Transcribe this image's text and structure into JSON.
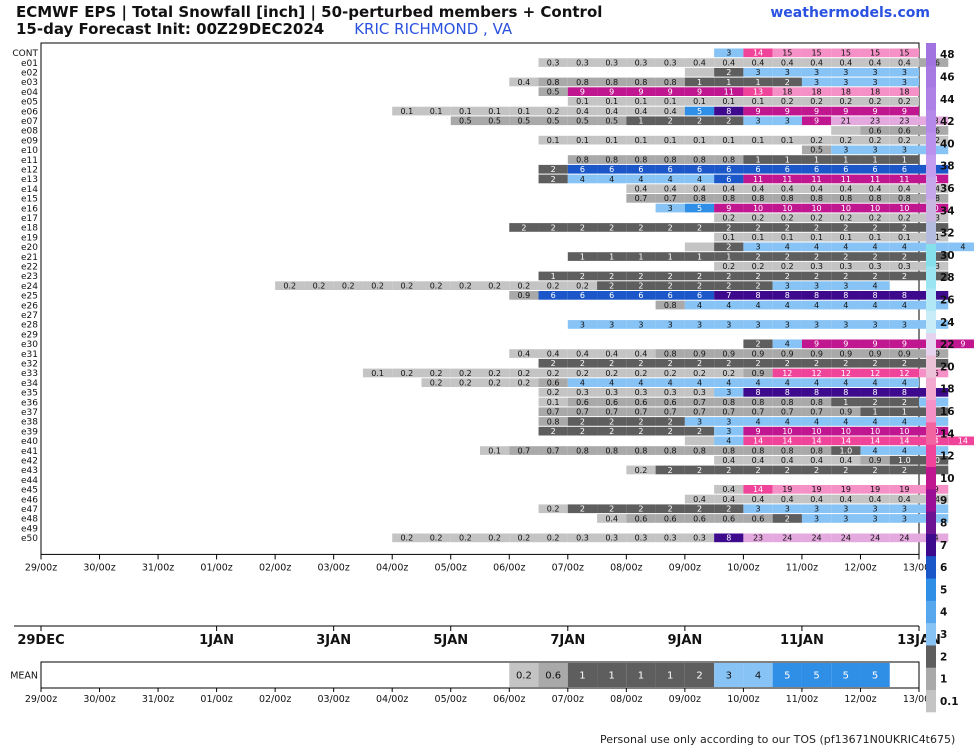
{
  "header": {
    "title_line1": "ECMWF EPS | Total Snowfall [inch] | 50-perturbed members + Control",
    "title_line2": "15-day Forecast Init: 00Z29DEC2024",
    "location": "KRIC RICHMOND      , VA",
    "brand": "weathermodels.com"
  },
  "footer": "Personal use only according to our TOS (pf13671N0UKRIC4t675)",
  "colors": {
    "grey_light": "#c4c4c4",
    "grey_mid": "#a9a9a9",
    "grey_dark": "#5e5e5e",
    "blue_light": "#87c3f5",
    "blue_mid": "#2f8ee6",
    "blue_dark": "#1b57c9",
    "purple": "#3d0a8e",
    "magenta": "#c0168f",
    "pink": "#f0449a",
    "pink_light": "#f591c6",
    "lavender": "#e4a9de"
  },
  "chart_data": {
    "type": "heatmap",
    "title": "ECMWF EPS | Total Snowfall [inch] | 50-perturbed members + Control",
    "time_ticks": [
      "29/00z",
      "30/00z",
      "31/00z",
      "01/00z",
      "02/00z",
      "03/00z",
      "04/00z",
      "05/00z",
      "06/00z",
      "07/00z",
      "08/00z",
      "09/00z",
      "10/00z",
      "11/00z",
      "12/00z",
      "13/00z"
    ],
    "date_labels": [
      {
        "label": "29DEC",
        "day": 0
      },
      {
        "label": "1JAN",
        "day": 3
      },
      {
        "label": "3JAN",
        "day": 5
      },
      {
        "label": "5JAN",
        "day": 7
      },
      {
        "label": "7JAN",
        "day": 9
      },
      {
        "label": "9JAN",
        "day": 11
      },
      {
        "label": "11JAN",
        "day": 13
      },
      {
        "label": "13JAN",
        "day": 15
      }
    ],
    "step_days": 0.5,
    "members": [
      {
        "name": "CONT",
        "start": 23,
        "values": [
          "3",
          "14",
          "15",
          "15",
          "15",
          "15",
          "15"
        ]
      },
      {
        "name": "e01",
        "start": 17,
        "values": [
          "0.3",
          "0.3",
          "0.3",
          "0.3",
          "0.3",
          "0.4",
          "0.4",
          "0.4",
          "0.4",
          "0.4",
          "0.4",
          "0.4",
          "0.4",
          "0.6"
        ]
      },
      {
        "name": "e02",
        "start": 22,
        "values": [
          "",
          "2",
          "3",
          "3",
          "3",
          "3",
          "3",
          "3"
        ]
      },
      {
        "name": "e03",
        "start": 16,
        "values": [
          "0.4",
          "0.8",
          "0.8",
          "0.8",
          "0.8",
          "0.8",
          "1",
          "1",
          "1",
          "2",
          "3",
          "3",
          "3",
          "3"
        ]
      },
      {
        "name": "e04",
        "start": 17,
        "values": [
          "0.5",
          "9",
          "9",
          "9",
          "9",
          "9",
          "11",
          "13",
          "18",
          "18",
          "18",
          "18",
          "18"
        ]
      },
      {
        "name": "e05",
        "start": 18,
        "values": [
          "0.1",
          "0.1",
          "0.1",
          "0.1",
          "0.1",
          "0.1",
          "0.1",
          "0.2",
          "0.2",
          "0.2",
          "0.2",
          "0.2"
        ]
      },
      {
        "name": "e06",
        "start": 12,
        "values": [
          "0.1",
          "0.1",
          "0.1",
          "0.1",
          "0.1",
          "0.2",
          "0.4",
          "0.4",
          "0.4",
          "0.4",
          "5",
          "8",
          "9",
          "9",
          "9",
          "9",
          "9",
          "9"
        ]
      },
      {
        "name": "e07",
        "start": 14,
        "values": [
          "0.5",
          "0.5",
          "0.5",
          "0.5",
          "0.5",
          "0.5",
          "1",
          "2",
          "2",
          "2",
          "3",
          "3",
          "9",
          "21",
          "23",
          "23",
          "23"
        ]
      },
      {
        "name": "e08",
        "start": 27,
        "values": [
          "",
          "0.6",
          "0.6",
          "0.6"
        ]
      },
      {
        "name": "e09",
        "start": 17,
        "values": [
          "0.1",
          "0.1",
          "0.1",
          "0.1",
          "0.1",
          "0.1",
          "0.1",
          "0.1",
          "0.1",
          "0.2",
          "0.2",
          "0.2",
          "0.2",
          "0.2"
        ]
      },
      {
        "name": "e10",
        "start": 26,
        "values": [
          "0.5",
          "3",
          "3",
          "3",
          "3"
        ]
      },
      {
        "name": "e11",
        "start": 18,
        "values": [
          "0.8",
          "0.8",
          "0.8",
          "0.8",
          "0.8",
          "0.8",
          "1",
          "1",
          "1",
          "1",
          "1",
          "1"
        ]
      },
      {
        "name": "e12",
        "start": 17,
        "values": [
          "2",
          "6",
          "6",
          "6",
          "6",
          "6",
          "6",
          "6",
          "6",
          "6",
          "6",
          "6",
          "6",
          "6"
        ]
      },
      {
        "name": "e13",
        "start": 17,
        "values": [
          "2",
          "4",
          "4",
          "4",
          "4",
          "4",
          "6",
          "11",
          "11",
          "11",
          "11",
          "11",
          "11",
          "11"
        ]
      },
      {
        "name": "e14",
        "start": 20,
        "values": [
          "0.4",
          "0.4",
          "0.4",
          "0.4",
          "0.4",
          "0.4",
          "0.4",
          "0.4",
          "0.4",
          "0.4",
          "0.4"
        ]
      },
      {
        "name": "e15",
        "start": 20,
        "values": [
          "0.7",
          "0.7",
          "0.8",
          "0.8",
          "0.8",
          "0.8",
          "0.8",
          "0.8",
          "0.8",
          "0.8",
          "0.8"
        ]
      },
      {
        "name": "e16",
        "start": 21,
        "values": [
          "3",
          "5",
          "9",
          "10",
          "10",
          "10",
          "10",
          "10",
          "10",
          "10"
        ]
      },
      {
        "name": "e17",
        "start": 23,
        "values": [
          "0.2",
          "0.2",
          "0.2",
          "0.2",
          "0.2",
          "0.2",
          "0.2",
          "0.3"
        ]
      },
      {
        "name": "e18",
        "start": 16,
        "values": [
          "2",
          "2",
          "2",
          "2",
          "2",
          "2",
          "2",
          "2",
          "2",
          "2",
          "2",
          "2",
          "2",
          "2",
          "2"
        ]
      },
      {
        "name": "e19",
        "start": 23,
        "values": [
          "0.1",
          "0.1",
          "0.1",
          "0.1",
          "0.1",
          "0.1",
          "0.1",
          "0.1"
        ]
      },
      {
        "name": "e20",
        "start": 22,
        "values": [
          "",
          "2",
          "3",
          "4",
          "4",
          "4",
          "4",
          "4",
          "4",
          "4"
        ]
      },
      {
        "name": "e21",
        "start": 18,
        "values": [
          "1",
          "1",
          "1",
          "1",
          "1",
          "1",
          "2",
          "2",
          "2",
          "2",
          "2",
          "2",
          "2"
        ]
      },
      {
        "name": "e22",
        "start": 23,
        "values": [
          "0.2",
          "0.2",
          "0.2",
          "0.3",
          "0.3",
          "0.3",
          "0.3",
          "0.3"
        ]
      },
      {
        "name": "e23",
        "start": 17,
        "values": [
          "1",
          "2",
          "2",
          "2",
          "2",
          "2",
          "2",
          "2",
          "2",
          "2",
          "2",
          "2",
          "2",
          "2"
        ]
      },
      {
        "name": "e24",
        "start": 8,
        "values": [
          "0.2",
          "0.2",
          "0.2",
          "0.2",
          "0.2",
          "0.2",
          "0.2",
          "0.2",
          "0.2",
          "0.2",
          "0.2",
          "2",
          "2",
          "2",
          "2",
          "2",
          "2",
          "3",
          "3",
          "3",
          "4"
        ]
      },
      {
        "name": "e25",
        "start": 16,
        "values": [
          "0.9",
          "6",
          "6",
          "6",
          "6",
          "6",
          "6",
          "7",
          "8",
          "8",
          "8",
          "8",
          "8",
          "8",
          "8"
        ]
      },
      {
        "name": "e26",
        "start": 21,
        "values": [
          "0.8",
          "4",
          "4",
          "4",
          "4",
          "4",
          "4",
          "4",
          "4",
          "4"
        ]
      },
      {
        "name": "e28",
        "start": 18,
        "values": [
          "3",
          "3",
          "3",
          "3",
          "3",
          "3",
          "3",
          "3",
          "3",
          "3",
          "3",
          "3",
          "3"
        ]
      },
      {
        "name": "e30",
        "start": 24,
        "values": [
          "2",
          "4",
          "9",
          "9",
          "9",
          "9",
          "9",
          "9"
        ]
      },
      {
        "name": "e31",
        "start": 16,
        "values": [
          "0.4",
          "0.4",
          "0.4",
          "0.4",
          "0.4",
          "0.8",
          "0.9",
          "0.9",
          "0.9",
          "0.9",
          "0.9",
          "0.9",
          "0.9",
          "0.9",
          "0.9"
        ]
      },
      {
        "name": "e32",
        "start": 17,
        "values": [
          "2",
          "2",
          "2",
          "2",
          "2",
          "2",
          "2",
          "2",
          "2",
          "2",
          "2",
          "2",
          "2",
          "2"
        ]
      },
      {
        "name": "e33",
        "start": 11,
        "values": [
          "0.1",
          "0.2",
          "0.2",
          "0.2",
          "0.2",
          "0.2",
          "0.2",
          "0.2",
          "0.2",
          "0.2",
          "0.2",
          "0.2",
          "0.2",
          "0.9",
          "12",
          "12",
          "12",
          "12",
          "12",
          "16"
        ]
      },
      {
        "name": "e34",
        "start": 13,
        "values": [
          "0.2",
          "0.2",
          "0.2",
          "0.2",
          "0.6",
          "4",
          "4",
          "4",
          "4",
          "4",
          "4",
          "4",
          "4",
          "4",
          "4",
          "4",
          "4"
        ]
      },
      {
        "name": "e35",
        "start": 17,
        "values": [
          "0.2",
          "0.3",
          "0.3",
          "0.3",
          "0.3",
          "0.3",
          "3",
          "8",
          "8",
          "8",
          "8",
          "8",
          "8",
          "8"
        ]
      },
      {
        "name": "e36",
        "start": 17,
        "values": [
          "0.1",
          "0.6",
          "0.6",
          "0.6",
          "0.6",
          "0.7",
          "0.8",
          "0.8",
          "0.8",
          "0.8",
          "1",
          "2",
          "2",
          "3"
        ]
      },
      {
        "name": "e37",
        "start": 17,
        "values": [
          "0.7",
          "0.7",
          "0.7",
          "0.7",
          "0.7",
          "0.7",
          "0.7",
          "0.7",
          "0.7",
          "0.7",
          "0.9",
          "1",
          "1",
          "1"
        ]
      },
      {
        "name": "e38",
        "start": 17,
        "values": [
          "0.8",
          "2",
          "2",
          "2",
          "2",
          "3",
          "3",
          "4",
          "4",
          "4",
          "4",
          "4",
          "4",
          "4"
        ]
      },
      {
        "name": "e39",
        "start": 17,
        "values": [
          "2",
          "2",
          "2",
          "2",
          "2",
          "2",
          "3",
          "9",
          "10",
          "10",
          "10",
          "10",
          "10",
          "10"
        ]
      },
      {
        "name": "e40",
        "start": 22,
        "values": [
          "",
          "4",
          "14",
          "14",
          "14",
          "14",
          "14",
          "14",
          "14",
          "14"
        ]
      },
      {
        "name": "e41",
        "start": 15,
        "values": [
          "0.1",
          "0.7",
          "0.7",
          "0.8",
          "0.8",
          "0.8",
          "0.8",
          "0.8",
          "0.8",
          "0.8",
          "0.8",
          "0.8",
          "1.0",
          "4",
          "4",
          "4"
        ]
      },
      {
        "name": "e42",
        "start": 23,
        "values": [
          "0.4",
          "0.4",
          "0.4",
          "0.4",
          "0.4",
          "0.9",
          "1.0",
          "1.0"
        ]
      },
      {
        "name": "e43",
        "start": 20,
        "values": [
          "0.2",
          "2",
          "2",
          "2",
          "2",
          "2",
          "2",
          "2",
          "2",
          "2",
          "2"
        ]
      },
      {
        "name": "e45",
        "start": 23,
        "values": [
          "0.4",
          "14",
          "19",
          "19",
          "19",
          "19",
          "19",
          "19"
        ]
      },
      {
        "name": "e46",
        "start": 22,
        "values": [
          "0.4",
          "0.4",
          "0.4",
          "0.4",
          "0.4",
          "0.4",
          "0.4",
          "0.4",
          "0.4"
        ]
      },
      {
        "name": "e47",
        "start": 17,
        "values": [
          "0.2",
          "2",
          "2",
          "2",
          "2",
          "2",
          "2",
          "3",
          "3",
          "3",
          "3",
          "3",
          "3",
          "3"
        ]
      },
      {
        "name": "e48",
        "start": 19,
        "values": [
          "0.4",
          "0.6",
          "0.6",
          "0.6",
          "0.6",
          "0.6",
          "2",
          "3",
          "3",
          "3",
          "3",
          "3"
        ]
      },
      {
        "name": "e50",
        "start": 12,
        "values": [
          "0.2",
          "0.2",
          "0.2",
          "0.2",
          "0.2",
          "0.2",
          "0.3",
          "0.3",
          "0.3",
          "0.3",
          "0.3",
          "8",
          "23",
          "24",
          "24",
          "24",
          "24",
          "24",
          "24"
        ]
      }
    ],
    "mean": {
      "name": "MEAN",
      "start": 16,
      "values": [
        "0.2",
        "0.6",
        "1",
        "1",
        "1",
        "1",
        "2",
        "3",
        "4",
        "5",
        "5",
        "5",
        "5"
      ]
    },
    "colorbar": {
      "labels": [
        "0.1",
        "1",
        "2",
        "3",
        "4",
        "5",
        "6",
        "7",
        "8",
        "9",
        "10",
        "12",
        "14",
        "16",
        "18",
        "20",
        "22",
        "24",
        "26",
        "28",
        "30",
        "32",
        "34",
        "36",
        "38",
        "40",
        "42",
        "44",
        "46",
        "48"
      ],
      "colors": [
        "#c4c4c4",
        "#a9a9a9",
        "#5e5e5e",
        "#87c3f5",
        "#56a7ee",
        "#2f8ee6",
        "#1b57c9",
        "#3d0a8e",
        "#6b1392",
        "#9a0e95",
        "#c0168f",
        "#f0449a",
        "#f2649f",
        "#f591c6",
        "#f2a8cf",
        "#ecc2d9",
        "#e6d3f0",
        "#c8ecf8",
        "#b2e8f6",
        "#9be4f2",
        "#86e0ec",
        "#b4bde0",
        "#c9b7e2",
        "#c7a7ec",
        "#c49cf0",
        "#bb91ee",
        "#b489ea",
        "#ad81e6",
        "#a77ae3",
        "#a173e0"
      ]
    }
  }
}
